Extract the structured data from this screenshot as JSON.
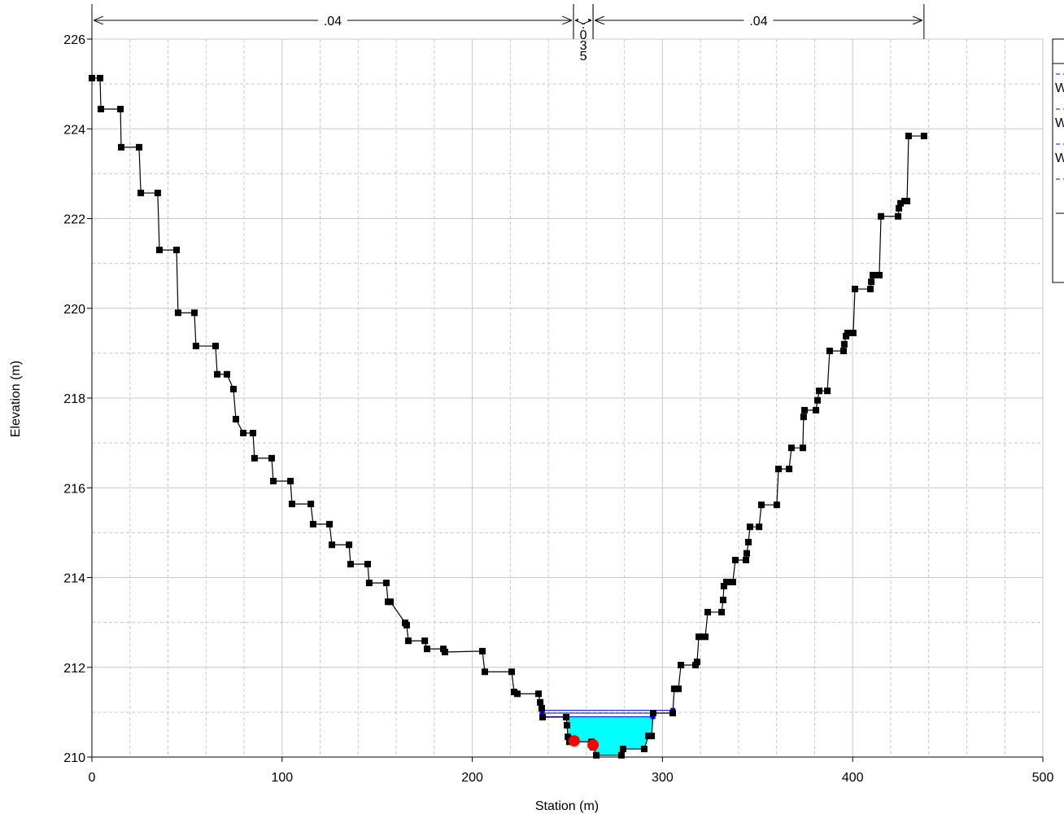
{
  "chart_data": {
    "type": "cross-section",
    "x_label": "Station (m)",
    "y_label": "Elevation (m)",
    "xlim": [
      0,
      500
    ],
    "ylim": [
      210,
      226
    ],
    "xticks": [
      0,
      100,
      200,
      300,
      400,
      500
    ],
    "yticks": [
      210,
      212,
      214,
      216,
      218,
      220,
      222,
      224,
      226
    ],
    "xminorticks": [
      20,
      40,
      60,
      80,
      120,
      140,
      160,
      180,
      220,
      240,
      260,
      280,
      320,
      340,
      360,
      380,
      420,
      440,
      460,
      480
    ],
    "yminorticks": [
      211,
      213,
      215,
      217,
      219,
      221,
      223,
      225
    ],
    "grid": true,
    "manning_n": [
      {
        "label": ".04",
        "from": 0,
        "to": 253.2
      },
      {
        "label": ".035",
        "from": 253.2,
        "to": 263.5
      },
      {
        "label": ".04",
        "from": 263.5,
        "to": 437.5
      }
    ],
    "ground": {
      "color": "#000000",
      "x": [
        0,
        4.3,
        4.7,
        15,
        15.4,
        24.8,
        25.7,
        34.6,
        35.5,
        44.5,
        45.3,
        53.9,
        54.7,
        65,
        65.9,
        71,
        74.4,
        75.7,
        79.6,
        84.7,
        85.5,
        94.5,
        95.4,
        104.4,
        105.2,
        115.1,
        116.3,
        124.9,
        126.2,
        135.2,
        136,
        145,
        145.8,
        154.8,
        155.7,
        157,
        164.7,
        165.5,
        166.4,
        175,
        176.2,
        184.8,
        185.6,
        205.3,
        206.6,
        220.7,
        222,
        223.7,
        234.8,
        235.7,
        236.5,
        237,
        249.4,
        249.8,
        250.3,
        251.1,
        262.6,
        263.5,
        265.2,
        278.4,
        279.3,
        290.4,
        292.6,
        294.3,
        295.1,
        305.4,
        306.2,
        308.4,
        309.7,
        317.4,
        318.2,
        319.1,
        322.5,
        323.8,
        331.1,
        331.9,
        332.3,
        333.6,
        337,
        338.3,
        343.9,
        344.3,
        345.2,
        346,
        350.8,
        352,
        360.1,
        361,
        366.6,
        367.8,
        373.8,
        374.2,
        374.7,
        380.7,
        381.5,
        382.4,
        386.7,
        387.9,
        395.2,
        395.6,
        396.5,
        397.3,
        400.3,
        401.2,
        409.3,
        409.8,
        410.6,
        414,
        414.9,
        423.9,
        424.3,
        425.2,
        427.3,
        428.6,
        429.4,
        437.5
      ],
      "y": [
        225.13,
        225.13,
        224.44,
        224.44,
        223.59,
        223.59,
        222.57,
        222.57,
        221.3,
        221.3,
        219.9,
        219.9,
        219.16,
        219.16,
        218.53,
        218.53,
        218.2,
        217.53,
        217.22,
        217.22,
        216.66,
        216.66,
        216.15,
        216.15,
        215.64,
        215.64,
        215.19,
        215.19,
        214.73,
        214.73,
        214.3,
        214.3,
        213.88,
        213.88,
        213.46,
        213.46,
        212.99,
        212.94,
        212.59,
        212.59,
        212.41,
        212.41,
        212.34,
        212.36,
        211.9,
        211.9,
        211.45,
        211.41,
        211.41,
        211.22,
        211.09,
        210.89,
        210.89,
        210.71,
        210.45,
        210.34,
        210.34,
        210.22,
        210.04,
        210.04,
        210.18,
        210.18,
        210.47,
        210.47,
        210.98,
        210.98,
        211.52,
        211.52,
        212.05,
        212.05,
        212.12,
        212.68,
        212.68,
        213.23,
        213.23,
        213.5,
        213.81,
        213.9,
        213.9,
        214.39,
        214.39,
        214.54,
        214.79,
        215.13,
        215.13,
        215.62,
        215.62,
        216.42,
        216.42,
        216.89,
        216.89,
        217.58,
        217.73,
        217.73,
        217.95,
        218.16,
        218.16,
        219.05,
        219.05,
        219.2,
        219.38,
        219.45,
        219.45,
        220.43,
        220.43,
        220.59,
        220.74,
        220.74,
        222.05,
        222.05,
        222.23,
        222.34,
        222.39,
        222.39,
        223.84,
        223.84
      ]
    },
    "bank_stations": {
      "color": "#ff0000",
      "x": [
        253.6,
        263.5
      ],
      "y": [
        210.36,
        210.27
      ]
    },
    "series": [
      {
        "name": "W",
        "color": "#0000ff",
        "values": [
          211.04
        ]
      },
      {
        "name": "W",
        "color": "#0000ff",
        "values": [
          210.98
        ]
      },
      {
        "name": "W",
        "color": "#0000ff",
        "values": [
          210.9
        ]
      }
    ],
    "water_fill": "#00ffff"
  }
}
